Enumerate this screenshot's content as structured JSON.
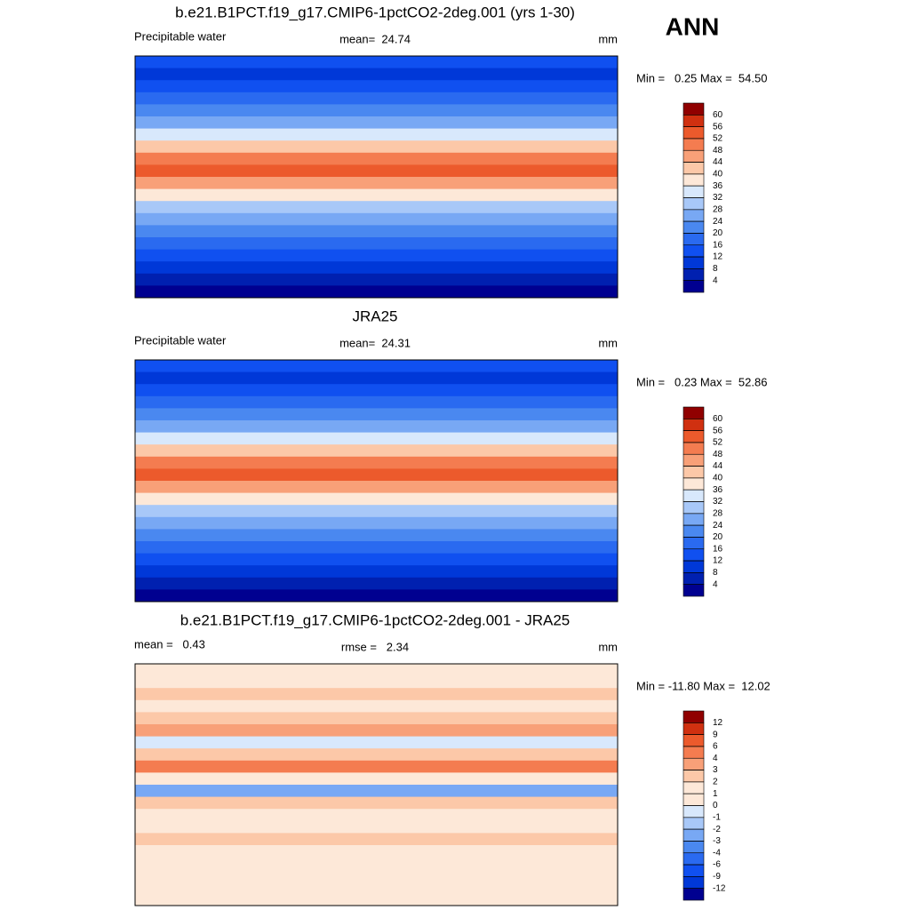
{
  "season": "ANN",
  "panels": [
    {
      "title": "b.e21.B1PCT.f19_g17.CMIP6-1pctCO2-2deg.001 (yrs 1-30)",
      "left_label": "Precipitable water",
      "center_label": "mean=  24.74",
      "right_label": "mm",
      "minmax": "Min =   0.25 Max =  54.50",
      "colorbar": {
        "levels": [
          60,
          56,
          52,
          48,
          44,
          40,
          36,
          32,
          28,
          24,
          20,
          16,
          12,
          8,
          4
        ],
        "colors": [
          "#900000",
          "#d03010",
          "#ec5a2c",
          "#f47c50",
          "#f8a078",
          "#fcc8a8",
          "#fde8d8",
          "#d8e8fc",
          "#a8c8f8",
          "#78a8f4",
          "#4a88f0",
          "#2a6af0",
          "#1050f0",
          "#0038d8",
          "#0020b0",
          "#000090"
        ]
      }
    },
    {
      "title": "JRA25",
      "left_label": "Precipitable water",
      "center_label": "mean=  24.31",
      "right_label": "mm",
      "minmax": "Min =   0.23 Max =  52.86",
      "colorbar": {
        "levels": [
          60,
          56,
          52,
          48,
          44,
          40,
          36,
          32,
          28,
          24,
          20,
          16,
          12,
          8,
          4
        ],
        "colors": [
          "#900000",
          "#d03010",
          "#ec5a2c",
          "#f47c50",
          "#f8a078",
          "#fcc8a8",
          "#fde8d8",
          "#d8e8fc",
          "#a8c8f8",
          "#78a8f4",
          "#4a88f0",
          "#2a6af0",
          "#1050f0",
          "#0038d8",
          "#0020b0",
          "#000090"
        ]
      }
    },
    {
      "title": "b.e21.B1PCT.f19_g17.CMIP6-1pctCO2-2deg.001 - JRA25",
      "left_label": "mean =   0.43",
      "center_label": "rmse =   2.34",
      "right_label": "mm",
      "minmax": "Min = -11.80 Max =  12.02",
      "colorbar": {
        "levels": [
          12,
          9,
          6,
          4,
          3,
          2,
          1,
          0,
          -1,
          -2,
          -3,
          -4,
          -6,
          -9,
          -12
        ],
        "colors": [
          "#900000",
          "#d03010",
          "#ec5a2c",
          "#f47c50",
          "#f8a078",
          "#fcc8a8",
          "#fde8d8",
          "#fde8d8",
          "#d8e8fc",
          "#a8c8f8",
          "#78a8f4",
          "#4a88f0",
          "#2a6af0",
          "#1050f0",
          "#0038d8",
          "#000090"
        ]
      }
    }
  ]
}
